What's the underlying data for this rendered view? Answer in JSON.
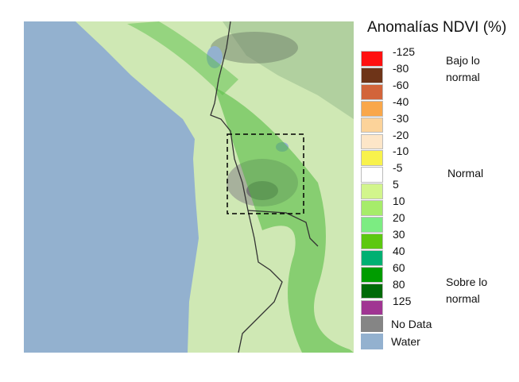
{
  "legend": {
    "title": "Anomalías NDVI (%)",
    "labels": [
      -125,
      -80,
      -60,
      -40,
      -30,
      -20,
      -10,
      -5,
      5,
      10,
      20,
      30,
      40,
      60,
      80,
      125
    ],
    "colors": [
      "#ff1010",
      "#6e3418",
      "#d2643a",
      "#f9a74a",
      "#fcd39a",
      "#fde6c8",
      "#f8f24c",
      "#ffffff",
      "#d2f58c",
      "#a6ec6a",
      "#7cec82",
      "#5cc810",
      "#00b072",
      "#009c00",
      "#006a08",
      "#a03592"
    ],
    "groups": [
      "Bajo lo normal",
      "Normal",
      "Sobre lo normal"
    ],
    "extra": [
      {
        "label": "No Data",
        "color": "#858585"
      },
      {
        "label": "Water",
        "color": "#93b1cf"
      }
    ]
  }
}
